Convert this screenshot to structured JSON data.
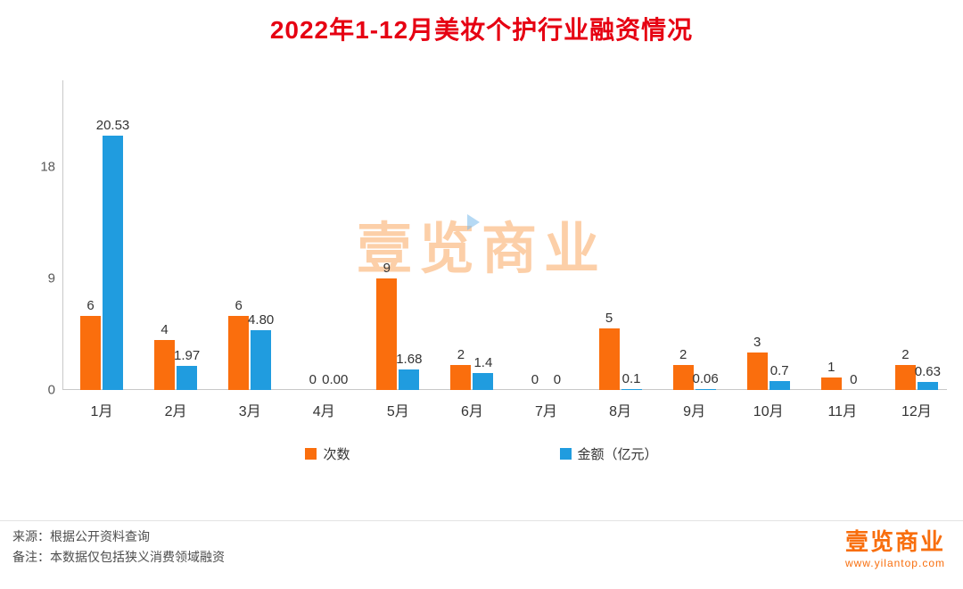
{
  "title": "2022年1-12月美妆个护行业融资情况",
  "chart_data": {
    "type": "bar",
    "categories": [
      "1月",
      "2月",
      "3月",
      "4月",
      "5月",
      "6月",
      "7月",
      "8月",
      "9月",
      "10月",
      "11月",
      "12月"
    ],
    "series": [
      {
        "name": "次数",
        "color": "#FA6E0D",
        "values": [
          6,
          4,
          6,
          0,
          9,
          2,
          0,
          5,
          2,
          3,
          1,
          2
        ],
        "labels": [
          "6",
          "4",
          "6",
          "0",
          "9",
          "2",
          "0",
          "5",
          "2",
          "3",
          "1",
          "2"
        ]
      },
      {
        "name": "金额（亿元）",
        "color": "#209CDF",
        "values": [
          20.53,
          1.97,
          4.8,
          0.0,
          1.68,
          1.4,
          0,
          0.1,
          0.06,
          0.7,
          0,
          0.63
        ],
        "labels": [
          "20.53",
          "1.97",
          "4.80",
          "0.00",
          "1.68",
          "1.4",
          "0",
          "0.1",
          "0.06",
          "0.7",
          "0",
          "0.63"
        ]
      }
    ],
    "y_ticks": [
      0,
      9,
      18
    ],
    "ylim": [
      0,
      21.6
    ],
    "grid": false,
    "legend_position": "bottom"
  },
  "watermark": "壹览商业",
  "footer": {
    "source": "来源：根据公开资料查询",
    "note": "备注：本数据仅包括狭义消费领域融资"
  },
  "logo": {
    "text": "壹览商业",
    "url": "www.yilantop.com"
  },
  "colors": {
    "title": "#E60012",
    "bar_count": "#FA6E0D",
    "bar_amount": "#209CDF"
  }
}
